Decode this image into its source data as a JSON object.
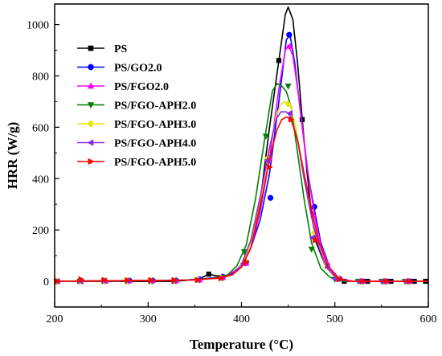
{
  "chart_data": {
    "type": "line",
    "xlabel": "Temperature (°C)",
    "ylabel": "HRR (W/g)",
    "xlim": [
      200,
      600
    ],
    "ylim": [
      -100,
      1080
    ],
    "xticks": [
      200,
      300,
      400,
      500,
      600
    ],
    "yticks": [
      0,
      200,
      400,
      600,
      800,
      1000
    ],
    "grid": false,
    "legend_position": "top-left",
    "series": [
      {
        "name": "PS",
        "color": "#000000",
        "marker": "square",
        "points": [
          [
            200,
            0
          ],
          [
            225,
            0
          ],
          [
            250,
            0
          ],
          [
            275,
            0
          ],
          [
            300,
            0
          ],
          [
            325,
            0
          ],
          [
            340,
            3
          ],
          [
            355,
            10
          ],
          [
            365,
            28
          ],
          [
            375,
            20
          ],
          [
            385,
            20
          ],
          [
            400,
            55
          ],
          [
            410,
            130
          ],
          [
            420,
            310
          ],
          [
            430,
            600
          ],
          [
            440,
            860
          ],
          [
            447,
            1040
          ],
          [
            450,
            1068
          ],
          [
            455,
            1020
          ],
          [
            460,
            850
          ],
          [
            465,
            630
          ],
          [
            470,
            430
          ],
          [
            475,
            260
          ],
          [
            480,
            150
          ],
          [
            490,
            60
          ],
          [
            500,
            15
          ],
          [
            510,
            0
          ],
          [
            550,
            0
          ],
          [
            600,
            0
          ]
        ],
        "markers": [
          [
            227,
            0
          ],
          [
            253,
            0
          ],
          [
            278,
            0
          ],
          [
            303,
            0
          ],
          [
            328,
            0
          ],
          [
            365,
            28
          ],
          [
            440,
            860
          ],
          [
            465,
            630
          ],
          [
            492,
            60
          ],
          [
            510,
            0
          ],
          [
            535,
            0
          ],
          [
            560,
            0
          ],
          [
            585,
            0
          ],
          [
            597,
            0
          ]
        ]
      },
      {
        "name": "PS/GO2.0",
        "color": "#0000ff",
        "marker": "circle",
        "points": [
          [
            200,
            0
          ],
          [
            250,
            2
          ],
          [
            300,
            3
          ],
          [
            340,
            5
          ],
          [
            365,
            12
          ],
          [
            385,
            20
          ],
          [
            400,
            60
          ],
          [
            410,
            130
          ],
          [
            420,
            240
          ],
          [
            430,
            420
          ],
          [
            440,
            700
          ],
          [
            448,
            940
          ],
          [
            452,
            960
          ],
          [
            457,
            850
          ],
          [
            465,
            600
          ],
          [
            472,
            400
          ],
          [
            478,
            280
          ],
          [
            485,
            150
          ],
          [
            495,
            50
          ],
          [
            505,
            10
          ],
          [
            520,
            0
          ],
          [
            560,
            0
          ],
          [
            600,
            0
          ]
        ],
        "markers": [
          [
            203,
            0
          ],
          [
            228,
            3
          ],
          [
            253,
            2
          ],
          [
            280,
            3
          ],
          [
            305,
            3
          ],
          [
            330,
            3
          ],
          [
            355,
            8
          ],
          [
            380,
            18
          ],
          [
            405,
            75
          ],
          [
            431,
            325
          ],
          [
            451,
            960
          ],
          [
            478,
            290
          ],
          [
            505,
            10
          ],
          [
            530,
            0
          ],
          [
            555,
            0
          ],
          [
            580,
            0
          ]
        ]
      },
      {
        "name": "PS/FGO2.0",
        "color": "#ff00ff",
        "marker": "triangle-up",
        "points": [
          [
            200,
            0
          ],
          [
            250,
            2
          ],
          [
            300,
            3
          ],
          [
            350,
            5
          ],
          [
            380,
            15
          ],
          [
            400,
            55
          ],
          [
            410,
            130
          ],
          [
            420,
            270
          ],
          [
            430,
            480
          ],
          [
            440,
            750
          ],
          [
            447,
            900
          ],
          [
            450,
            920
          ],
          [
            455,
            880
          ],
          [
            462,
            700
          ],
          [
            470,
            450
          ],
          [
            478,
            260
          ],
          [
            485,
            140
          ],
          [
            495,
            50
          ],
          [
            505,
            10
          ],
          [
            520,
            0
          ],
          [
            600,
            0
          ]
        ],
        "markers": [
          [
            203,
            0
          ],
          [
            228,
            0
          ],
          [
            255,
            2
          ],
          [
            280,
            2
          ],
          [
            305,
            3
          ],
          [
            330,
            3
          ],
          [
            355,
            5
          ],
          [
            380,
            15
          ],
          [
            405,
            70
          ],
          [
            430,
            480
          ],
          [
            452,
            915
          ],
          [
            477,
            260
          ],
          [
            505,
            10
          ],
          [
            530,
            0
          ],
          [
            555,
            0
          ],
          [
            580,
            0
          ]
        ]
      },
      {
        "name": "PS/FGO-APH2.0",
        "color": "#008000",
        "marker": "triangle-down",
        "points": [
          [
            200,
            0
          ],
          [
            250,
            2
          ],
          [
            300,
            3
          ],
          [
            340,
            5
          ],
          [
            370,
            12
          ],
          [
            385,
            25
          ],
          [
            395,
            60
          ],
          [
            405,
            140
          ],
          [
            415,
            320
          ],
          [
            425,
            560
          ],
          [
            433,
            740
          ],
          [
            438,
            770
          ],
          [
            443,
            760
          ],
          [
            448,
            740
          ],
          [
            453,
            680
          ],
          [
            460,
            500
          ],
          [
            467,
            320
          ],
          [
            475,
            150
          ],
          [
            485,
            50
          ],
          [
            495,
            15
          ],
          [
            510,
            0
          ],
          [
            600,
            0
          ]
        ],
        "markers": [
          [
            202,
            0
          ],
          [
            227,
            0
          ],
          [
            253,
            2
          ],
          [
            278,
            2
          ],
          [
            303,
            3
          ],
          [
            328,
            3
          ],
          [
            353,
            5
          ],
          [
            378,
            15
          ],
          [
            403,
            115
          ],
          [
            426,
            565
          ],
          [
            450,
            760
          ],
          [
            475,
            125
          ],
          [
            500,
            8
          ],
          [
            525,
            0
          ],
          [
            550,
            0
          ],
          [
            575,
            0
          ]
        ]
      },
      {
        "name": "PS/FGO-APH3.0",
        "color": "#e6e600",
        "marker": "diamond",
        "points": [
          [
            200,
            0
          ],
          [
            250,
            2
          ],
          [
            300,
            3
          ],
          [
            345,
            5
          ],
          [
            375,
            12
          ],
          [
            390,
            25
          ],
          [
            400,
            60
          ],
          [
            410,
            150
          ],
          [
            420,
            320
          ],
          [
            430,
            520
          ],
          [
            437,
            640
          ],
          [
            442,
            690
          ],
          [
            447,
            700
          ],
          [
            452,
            690
          ],
          [
            458,
            600
          ],
          [
            465,
            450
          ],
          [
            472,
            300
          ],
          [
            480,
            170
          ],
          [
            490,
            60
          ],
          [
            500,
            15
          ],
          [
            515,
            0
          ],
          [
            600,
            0
          ]
        ],
        "markers": [
          [
            203,
            0
          ],
          [
            228,
            0
          ],
          [
            253,
            2
          ],
          [
            278,
            2
          ],
          [
            303,
            3
          ],
          [
            328,
            3
          ],
          [
            353,
            5
          ],
          [
            378,
            12
          ],
          [
            404,
            80
          ],
          [
            428,
            480
          ],
          [
            450,
            690
          ],
          [
            478,
            190
          ],
          [
            503,
            12
          ],
          [
            528,
            0
          ],
          [
            553,
            0
          ],
          [
            578,
            0
          ]
        ]
      },
      {
        "name": "PS/FGO-APH4.0",
        "color": "#8a2be2",
        "marker": "triangle-left",
        "points": [
          [
            200,
            0
          ],
          [
            250,
            2
          ],
          [
            300,
            3
          ],
          [
            345,
            5
          ],
          [
            375,
            12
          ],
          [
            390,
            25
          ],
          [
            400,
            65
          ],
          [
            410,
            160
          ],
          [
            420,
            330
          ],
          [
            430,
            520
          ],
          [
            437,
            630
          ],
          [
            442,
            660
          ],
          [
            448,
            660
          ],
          [
            453,
            640
          ],
          [
            460,
            550
          ],
          [
            467,
            400
          ],
          [
            475,
            250
          ],
          [
            483,
            130
          ],
          [
            492,
            50
          ],
          [
            502,
            12
          ],
          [
            515,
            0
          ],
          [
            600,
            0
          ]
        ],
        "markers": [
          [
            203,
            0
          ],
          [
            228,
            0
          ],
          [
            253,
            2
          ],
          [
            278,
            2
          ],
          [
            303,
            3
          ],
          [
            328,
            3
          ],
          [
            353,
            5
          ],
          [
            378,
            12
          ],
          [
            402,
            70
          ],
          [
            428,
            470
          ],
          [
            452,
            655
          ],
          [
            476,
            170
          ],
          [
            500,
            10
          ],
          [
            525,
            0
          ],
          [
            550,
            0
          ],
          [
            575,
            0
          ]
        ]
      },
      {
        "name": "PS/FGO-APH5.0",
        "color": "#ff0000",
        "marker": "triangle-right",
        "points": [
          [
            200,
            0
          ],
          [
            250,
            2
          ],
          [
            300,
            3
          ],
          [
            345,
            5
          ],
          [
            375,
            12
          ],
          [
            390,
            25
          ],
          [
            400,
            55
          ],
          [
            410,
            130
          ],
          [
            420,
            290
          ],
          [
            430,
            480
          ],
          [
            438,
            590
          ],
          [
            443,
            630
          ],
          [
            448,
            640
          ],
          [
            453,
            630
          ],
          [
            460,
            550
          ],
          [
            467,
            420
          ],
          [
            475,
            280
          ],
          [
            483,
            150
          ],
          [
            493,
            55
          ],
          [
            503,
            15
          ],
          [
            515,
            0
          ],
          [
            600,
            0
          ]
        ],
        "markers": [
          [
            203,
            0
          ],
          [
            228,
            8
          ],
          [
            253,
            5
          ],
          [
            278,
            4
          ],
          [
            303,
            4
          ],
          [
            328,
            4
          ],
          [
            353,
            5
          ],
          [
            378,
            12
          ],
          [
            405,
            75
          ],
          [
            430,
            445
          ],
          [
            453,
            630
          ],
          [
            479,
            160
          ],
          [
            505,
            8
          ],
          [
            530,
            0
          ],
          [
            555,
            0
          ],
          [
            580,
            0
          ]
        ]
      }
    ]
  }
}
